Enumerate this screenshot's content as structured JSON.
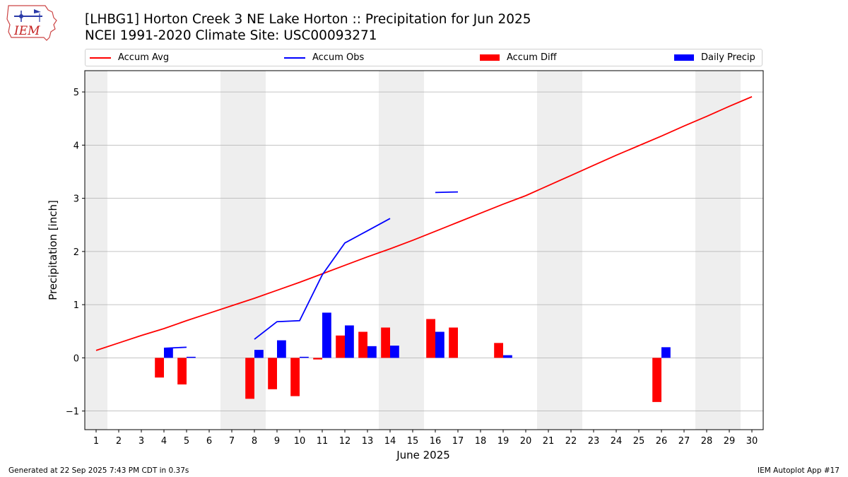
{
  "header": {
    "title_line1": "[LHBG1] Horton Creek 3 NE Lake Horton :: Precipitation for Jun 2025",
    "title_line2": "NCEI 1991-2020 Climate Site: USC00093271",
    "logo_text": "IEM"
  },
  "footer": {
    "generated": "Generated at 22 Sep 2025 7:43 PM CDT in 0.37s",
    "app": "IEM Autoplot App #17"
  },
  "colors": {
    "avg": "#ff0000",
    "obs": "#0000ff",
    "diff": "#ff0000",
    "daily": "#0000ff",
    "weekend_shade": "#eeeeee",
    "grid": "#b0b0b0"
  },
  "chart_data": {
    "type": "bar",
    "title": "[LHBG1] Horton Creek 3 NE Lake Horton :: Precipitation for Jun 2025",
    "subtitle": "NCEI 1991-2020 Climate Site: USC00093271",
    "xlabel": "June 2025",
    "ylabel": "Precipitation [inch]",
    "xlim": [
      0.5,
      30.5
    ],
    "ylim": [
      -1.35,
      5.4
    ],
    "yticks": [
      -1,
      0,
      1,
      2,
      3,
      4,
      5
    ],
    "ytick_labels": [
      "−1",
      "0",
      "1",
      "2",
      "3",
      "4",
      "5"
    ],
    "x": [
      1,
      2,
      3,
      4,
      5,
      6,
      7,
      8,
      9,
      10,
      11,
      12,
      13,
      14,
      15,
      16,
      17,
      18,
      19,
      20,
      21,
      22,
      23,
      24,
      25,
      26,
      27,
      28,
      29,
      30
    ],
    "grid": "y",
    "legend_position": "top, above plot",
    "weekend_shading": [
      [
        0.5,
        1.5
      ],
      [
        6.5,
        8.5
      ],
      [
        13.5,
        15.5
      ],
      [
        20.5,
        22.5
      ],
      [
        27.5,
        29.5
      ]
    ],
    "series": [
      {
        "name": "Accum Avg",
        "kind": "line",
        "values": [
          0.14,
          0.28,
          0.42,
          0.55,
          0.7,
          0.84,
          0.98,
          1.12,
          1.27,
          1.42,
          1.58,
          1.74,
          1.9,
          2.05,
          2.21,
          2.38,
          2.55,
          2.72,
          2.89,
          3.05,
          3.24,
          3.43,
          3.62,
          3.81,
          3.99,
          4.17,
          4.36,
          4.54,
          4.73,
          4.91
        ]
      },
      {
        "name": "Accum Obs",
        "kind": "line",
        "values": [
          null,
          null,
          null,
          0.18,
          0.2,
          null,
          null,
          0.35,
          0.68,
          0.7,
          1.56,
          2.16,
          2.39,
          2.62,
          null,
          3.11,
          3.12,
          null,
          null,
          null,
          null,
          null,
          null,
          null,
          null,
          null,
          null,
          null,
          null,
          null
        ]
      },
      {
        "name": "Accum Diff",
        "kind": "bar",
        "values": [
          null,
          null,
          null,
          -0.37,
          -0.5,
          null,
          null,
          -0.77,
          -0.59,
          -0.72,
          -0.03,
          0.42,
          0.49,
          0.57,
          null,
          0.73,
          0.57,
          null,
          0.28,
          null,
          null,
          null,
          null,
          null,
          null,
          -0.83,
          null,
          null,
          null,
          null
        ]
      },
      {
        "name": "Daily Precip",
        "kind": "bar",
        "values": [
          null,
          null,
          null,
          0.18,
          0.02,
          null,
          null,
          0.15,
          0.33,
          0.02,
          0.85,
          0.61,
          0.22,
          0.23,
          null,
          0.49,
          null,
          null,
          0.05,
          null,
          null,
          null,
          null,
          null,
          null,
          0.2,
          null,
          null,
          null,
          null
        ]
      }
    ]
  }
}
